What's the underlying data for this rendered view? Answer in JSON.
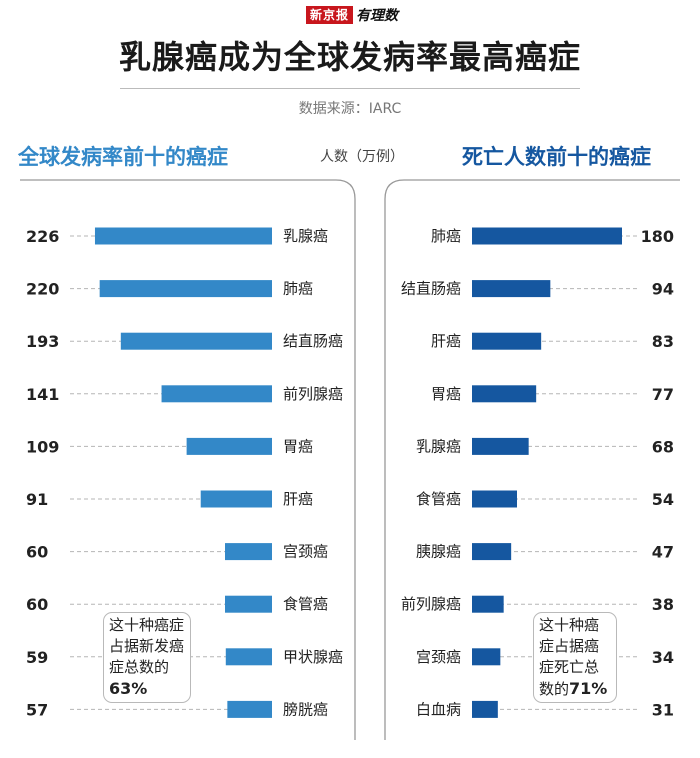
{
  "brand": {
    "newspaper": "新京报",
    "column": "有理数"
  },
  "title": "乳腺癌成为全球发病率最高癌症",
  "source": "数据来源：IARC",
  "unit_label": "人数（万例）",
  "colors": {
    "incidence": "#3388c8",
    "mortality": "#1557a0",
    "grid": "#b5b5b5"
  },
  "chart_data": [
    {
      "type": "bar",
      "orientation": "horizontal",
      "title": "全球发病率前十的癌症",
      "unit": "人数（万例）",
      "categories": [
        "乳腺癌",
        "肺癌",
        "结直肠癌",
        "前列腺癌",
        "胃癌",
        "肝癌",
        "宫颈癌",
        "食管癌",
        "甲状腺癌",
        "膀胱癌"
      ],
      "values": [
        226,
        220,
        193,
        141,
        109,
        91,
        60,
        60,
        59,
        57
      ],
      "xlim": [
        0,
        240
      ],
      "note_prefix": "这十种癌症占据新发癌症总数的",
      "note_value": "63%"
    },
    {
      "type": "bar",
      "orientation": "horizontal",
      "title": "死亡人数前十的癌症",
      "unit": "人数（万例）",
      "categories": [
        "肺癌",
        "结直肠癌",
        "肝癌",
        "胃癌",
        "乳腺癌",
        "食管癌",
        "胰腺癌",
        "前列腺癌",
        "宫颈癌",
        "白血病"
      ],
      "values": [
        180,
        94,
        83,
        77,
        68,
        54,
        47,
        38,
        34,
        31
      ],
      "xlim": [
        0,
        180
      ],
      "note_prefix": "这十种癌症占据癌症死亡总数的",
      "note_value": "71%"
    }
  ]
}
